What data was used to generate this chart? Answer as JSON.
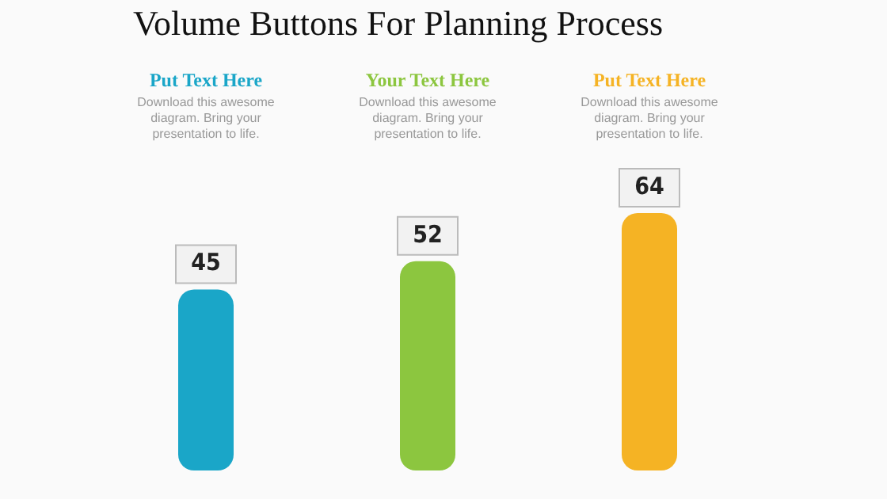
{
  "chart_data": {
    "type": "bar",
    "title": "Volume Buttons For Planning Process",
    "categories": [
      "Put Text Here",
      "Your Text Here",
      "Put Text Here"
    ],
    "values": [
      45,
      52,
      64
    ],
    "colors": [
      "#1aa6c8",
      "#8cc63f",
      "#f5b324"
    ],
    "data_labels": true,
    "annotations": [
      "Download this awesome diagram. Bring your presentation to life.",
      "Download this awesome diagram. Bring your presentation to life.",
      "Download this awesome diagram. Bring your presentation to life."
    ],
    "grid": false,
    "legend": false
  }
}
